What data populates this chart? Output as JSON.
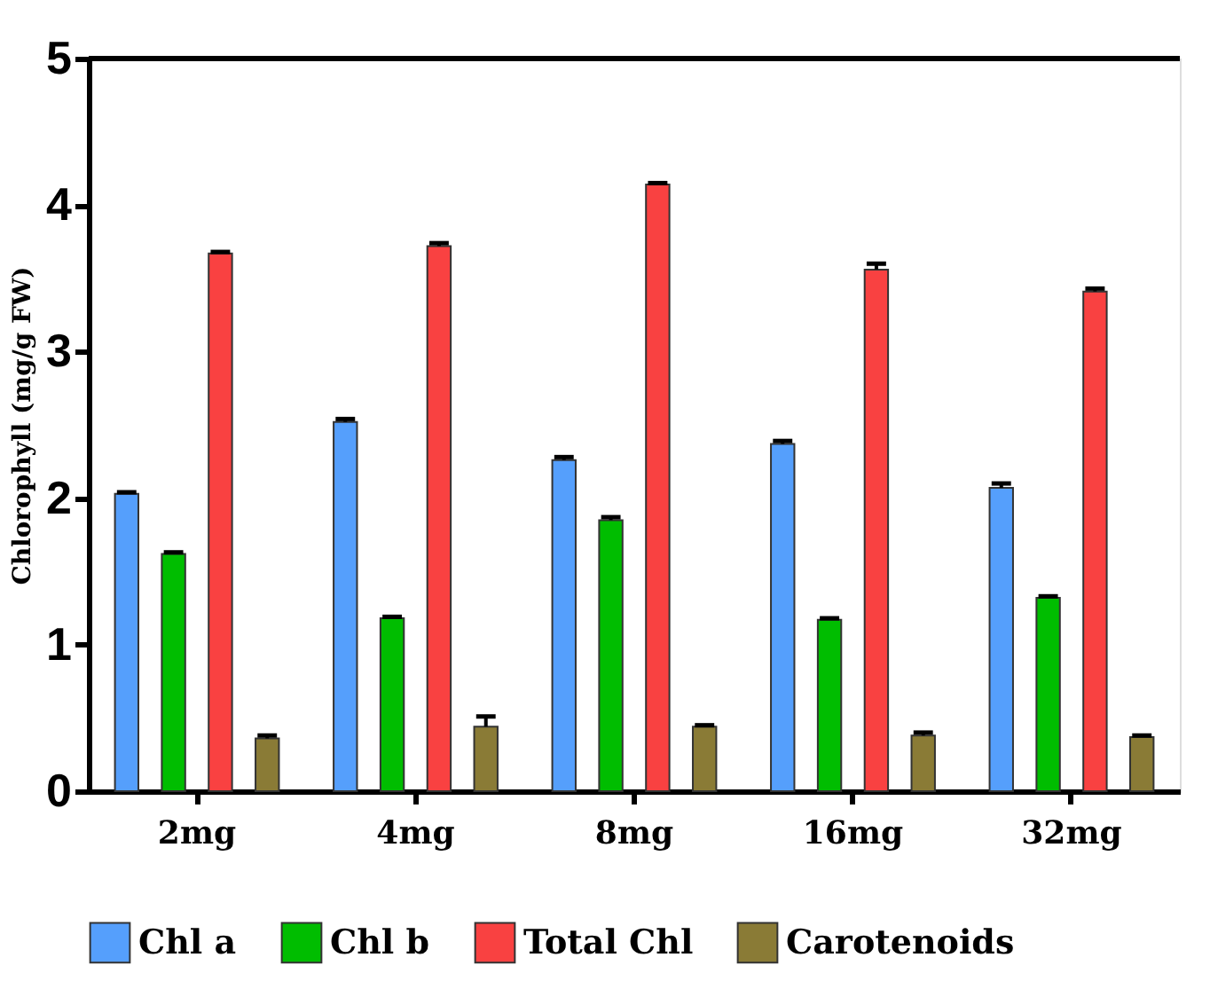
{
  "chart_data": {
    "type": "bar",
    "ylabel": "Chlorophyll (mg/g FW)",
    "categories": [
      "2mg",
      "4mg",
      "8mg",
      "16mg",
      "32mg"
    ],
    "series": [
      {
        "name": "Chl a",
        "color": "#559ffc",
        "values": [
          2.03,
          2.52,
          2.26,
          2.37,
          2.07
        ],
        "errors": [
          0.01,
          0.02,
          0.02,
          0.02,
          0.03
        ]
      },
      {
        "name": "Chl b",
        "color": "#00bd00",
        "values": [
          1.62,
          1.18,
          1.85,
          1.17,
          1.32
        ],
        "errors": [
          0.01,
          0.01,
          0.02,
          0.01,
          0.01
        ]
      },
      {
        "name": "Total Chl",
        "color": "#f94141",
        "values": [
          3.67,
          3.72,
          4.14,
          3.56,
          3.41
        ],
        "errors": [
          0.01,
          0.02,
          0.01,
          0.04,
          0.02
        ]
      },
      {
        "name": "Carotenoids",
        "color": "#8a7b36",
        "values": [
          0.36,
          0.44,
          0.44,
          0.38,
          0.37
        ],
        "errors": [
          0.02,
          0.07,
          0.01,
          0.02,
          0.01
        ]
      }
    ],
    "ylim": [
      0,
      5
    ],
    "yticks": [
      0,
      1,
      2,
      3,
      4,
      5
    ],
    "grid": false,
    "legend": "bottom"
  }
}
